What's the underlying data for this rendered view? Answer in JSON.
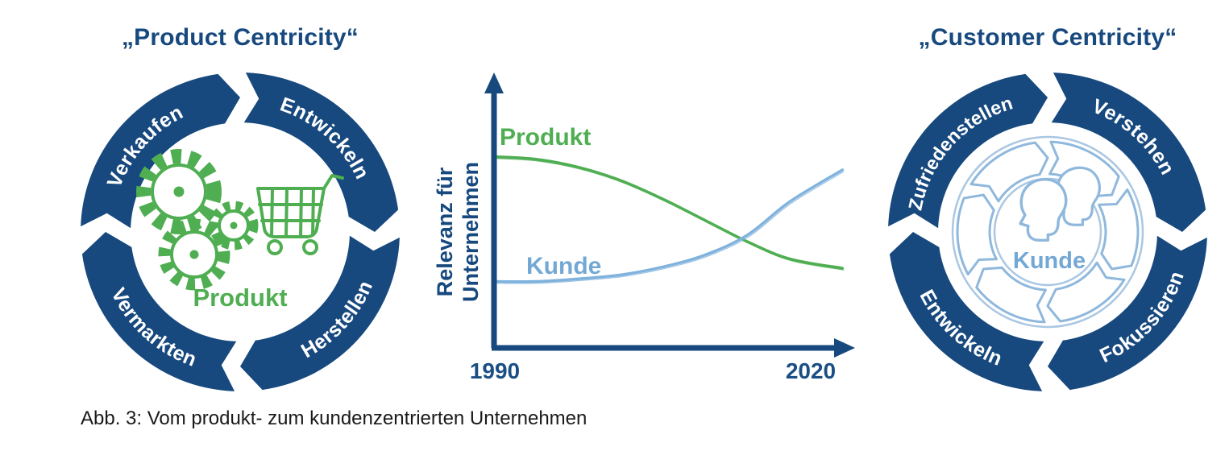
{
  "left_panel": {
    "title": "„Product Centricity“",
    "ring": {
      "top_left": "Verkaufen",
      "top_right": "Entwickeln",
      "bottom_right": "Herstellen",
      "bottom_left": "Vermarkten"
    },
    "center_label": "Produkt",
    "icons": [
      "gears-icon",
      "shopping-cart-icon"
    ]
  },
  "chart": {
    "y_axis_label_line1": "Relevanz für",
    "y_axis_label_line2": "Unternehmen",
    "series_label_produkt": "Produkt",
    "series_label_kunde": "Kunde",
    "x_tick_start": "1990",
    "x_tick_end": "2020"
  },
  "chart_data": {
    "type": "line",
    "title": "",
    "xlabel": "",
    "ylabel": "Relevanz für Unternehmen",
    "x_ticks": [
      "1990",
      "2020"
    ],
    "x_range": [
      1990,
      2023
    ],
    "y_range": [
      0,
      1
    ],
    "grid": false,
    "legend": "inline-labels",
    "style": "hand-drawn sketch lines, axes with arrowheads, no y ticks",
    "series": [
      {
        "name": "Produkt",
        "color": "#4FAE52",
        "x": [
          1990,
          1994,
          1998,
          2002,
          2006,
          2010,
          2014,
          2018,
          2023
        ],
        "values": [
          0.72,
          0.71,
          0.68,
          0.63,
          0.56,
          0.48,
          0.4,
          0.335,
          0.3
        ]
      },
      {
        "name": "Kunde",
        "color": "#7FB2DC",
        "x": [
          1990,
          1994,
          1998,
          2002,
          2006,
          2010,
          2014,
          2018,
          2023
        ],
        "values": [
          0.25,
          0.25,
          0.26,
          0.275,
          0.305,
          0.35,
          0.425,
          0.55,
          0.67
        ]
      }
    ],
    "annotation": "Produkt relevance declines while Kunde relevance rises; the curves cross around 2014"
  },
  "right_panel": {
    "title": "„Customer Centricity“",
    "ring": {
      "top_left": "Zufriedenstellen",
      "top_right": "Verstehen",
      "bottom_right": "Fokussieren",
      "bottom_left": "Entwickeln"
    },
    "center_label": "Kunde",
    "icons": [
      "people-icon",
      "inner-cycle-arrows-icon"
    ]
  },
  "caption": "Abb. 3: Vom produkt- zum kundenzentrierten Unternehmen",
  "colors": {
    "navy": "#17497E",
    "green": "#4FAE52",
    "light_blue": "#74A8D4",
    "sketch_blue": "#8FB8DC",
    "background": "#FFFFFF"
  }
}
